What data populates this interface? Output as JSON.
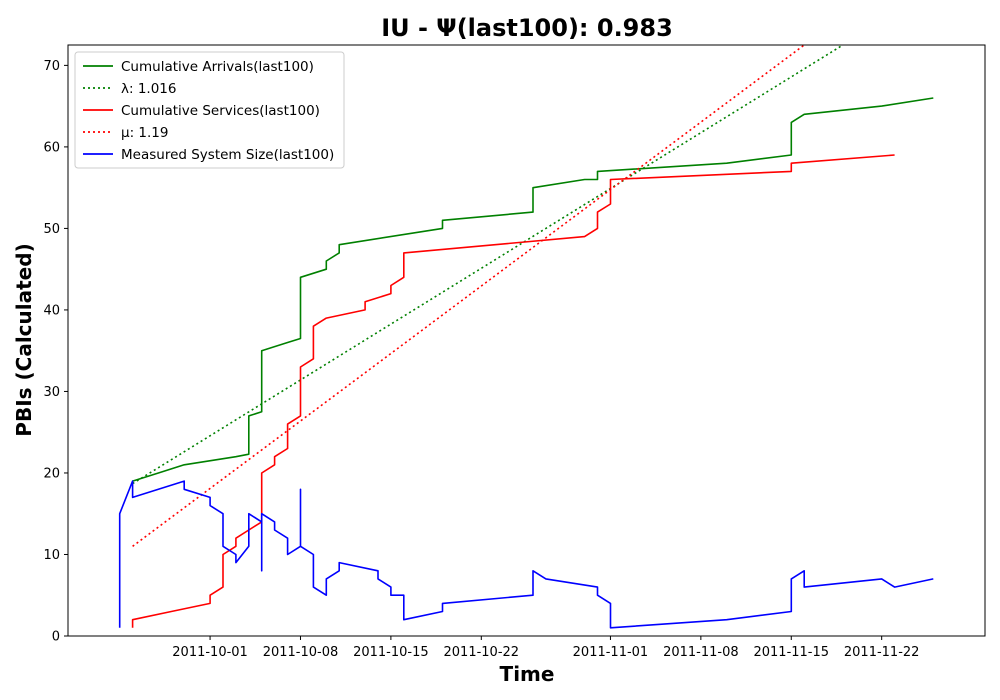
{
  "chart_data": {
    "type": "line",
    "title": "IU -  Ψ(last100): 0.983",
    "xlabel": "Time",
    "ylabel": "PBIs (Calculated)",
    "xlim": [
      "2011-09-20",
      "2011-11-30"
    ],
    "ylim": [
      0,
      72.5
    ],
    "x_ticks": [
      "2011-10-01",
      "2011-10-08",
      "2011-10-15",
      "2011-10-22",
      "2011-11-01",
      "2011-11-08",
      "2011-11-15",
      "2011-11-22"
    ],
    "y_ticks": [
      0,
      10,
      20,
      30,
      40,
      50,
      60,
      70
    ],
    "grid": false,
    "legend_position": "top-left",
    "series": [
      {
        "name": "Cumulative Arrivals(last100)",
        "color": "#008000",
        "style": "solid",
        "points": [
          [
            "2011-09-25",
            19
          ],
          [
            "2011-09-27",
            20
          ],
          [
            "2011-09-28",
            20.5
          ],
          [
            "2011-09-29",
            21
          ],
          [
            "2011-10-03",
            22
          ],
          [
            "2011-10-04",
            22.3
          ],
          [
            "2011-10-04",
            23
          ],
          [
            "2011-10-04",
            27
          ],
          [
            "2011-10-05",
            27.5
          ],
          [
            "2011-10-05",
            28
          ],
          [
            "2011-10-05",
            35
          ],
          [
            "2011-10-06",
            35.5
          ],
          [
            "2011-10-07",
            36
          ],
          [
            "2011-10-08",
            36.5
          ],
          [
            "2011-10-08",
            37
          ],
          [
            "2011-10-08",
            44
          ],
          [
            "2011-10-10",
            45
          ],
          [
            "2011-10-10",
            46
          ],
          [
            "2011-10-11",
            47
          ],
          [
            "2011-10-11",
            48
          ],
          [
            "2011-10-19",
            50
          ],
          [
            "2011-10-19",
            51
          ],
          [
            "2011-10-26",
            52
          ],
          [
            "2011-10-26",
            55
          ],
          [
            "2011-10-30",
            56
          ],
          [
            "2011-10-31",
            56
          ],
          [
            "2011-10-31",
            57
          ],
          [
            "2011-11-10",
            58
          ],
          [
            "2011-11-15",
            59
          ],
          [
            "2011-11-15",
            63
          ],
          [
            "2011-11-16",
            64
          ],
          [
            "2011-11-22",
            65
          ],
          [
            "2011-11-26",
            66
          ]
        ]
      },
      {
        "name": "λ: 1.016",
        "color": "#008000",
        "style": "dotted",
        "points": [
          [
            "2011-09-25",
            18.7
          ],
          [
            "2011-11-19",
            72.5
          ]
        ]
      },
      {
        "name": "Cumulative Services(last100)",
        "color": "#ff0000",
        "style": "solid",
        "points": [
          [
            "2011-09-25",
            1
          ],
          [
            "2011-09-25",
            2
          ],
          [
            "2011-09-28",
            3
          ],
          [
            "2011-10-01",
            4
          ],
          [
            "2011-10-01",
            5
          ],
          [
            "2011-10-02",
            6
          ],
          [
            "2011-10-02",
            10
          ],
          [
            "2011-10-03",
            11
          ],
          [
            "2011-10-03",
            12
          ],
          [
            "2011-10-04",
            13
          ],
          [
            "2011-10-05",
            14
          ],
          [
            "2011-10-05",
            15
          ],
          [
            "2011-10-05",
            16
          ],
          [
            "2011-10-05",
            20
          ],
          [
            "2011-10-06",
            21
          ],
          [
            "2011-10-06",
            22
          ],
          [
            "2011-10-07",
            23
          ],
          [
            "2011-10-07",
            26
          ],
          [
            "2011-10-08",
            27
          ],
          [
            "2011-10-08",
            33
          ],
          [
            "2011-10-09",
            34
          ],
          [
            "2011-10-09",
            35
          ],
          [
            "2011-10-09",
            38
          ],
          [
            "2011-10-10",
            39
          ],
          [
            "2011-10-13",
            40
          ],
          [
            "2011-10-13",
            41
          ],
          [
            "2011-10-15",
            42
          ],
          [
            "2011-10-15",
            43
          ],
          [
            "2011-10-16",
            44
          ],
          [
            "2011-10-16",
            47
          ],
          [
            "2011-10-30",
            49
          ],
          [
            "2011-10-31",
            50
          ],
          [
            "2011-10-31",
            52
          ],
          [
            "2011-11-01",
            53
          ],
          [
            "2011-11-01",
            55
          ],
          [
            "2011-11-01",
            56
          ],
          [
            "2011-11-15",
            57
          ],
          [
            "2011-11-15",
            58
          ],
          [
            "2011-11-23",
            59
          ]
        ]
      },
      {
        "name": "μ: 1.19",
        "color": "#ff0000",
        "style": "dotted",
        "points": [
          [
            "2011-09-25",
            11
          ],
          [
            "2011-11-16",
            72.5
          ]
        ]
      },
      {
        "name": "Measured System Size(last100)",
        "color": "#0000ff",
        "style": "solid",
        "points": [
          [
            "2011-09-24",
            1
          ],
          [
            "2011-09-24",
            15
          ],
          [
            "2011-09-25",
            19
          ],
          [
            "2011-09-25",
            18
          ],
          [
            "2011-09-25",
            17
          ],
          [
            "2011-09-29",
            19
          ],
          [
            "2011-09-29",
            18
          ],
          [
            "2011-10-01",
            17
          ],
          [
            "2011-10-01",
            16
          ],
          [
            "2011-10-02",
            15
          ],
          [
            "2011-10-02",
            11
          ],
          [
            "2011-10-03",
            10
          ],
          [
            "2011-10-03",
            9
          ],
          [
            "2011-10-04",
            11
          ],
          [
            "2011-10-04",
            15
          ],
          [
            "2011-10-05",
            14
          ],
          [
            "2011-10-05",
            12
          ],
          [
            "2011-10-05",
            13
          ],
          [
            "2011-10-05",
            8
          ],
          [
            "2011-10-05",
            15
          ],
          [
            "2011-10-06",
            14
          ],
          [
            "2011-10-06",
            13
          ],
          [
            "2011-10-07",
            12
          ],
          [
            "2011-10-07",
            10
          ],
          [
            "2011-10-08",
            11
          ],
          [
            "2011-10-08",
            18
          ],
          [
            "2011-10-08",
            11
          ],
          [
            "2011-10-09",
            10
          ],
          [
            "2011-10-09",
            9
          ],
          [
            "2011-10-09",
            6
          ],
          [
            "2011-10-10",
            5
          ],
          [
            "2011-10-10",
            7
          ],
          [
            "2011-10-11",
            8
          ],
          [
            "2011-10-11",
            9
          ],
          [
            "2011-10-14",
            8
          ],
          [
            "2011-10-14",
            7
          ],
          [
            "2011-10-15",
            6
          ],
          [
            "2011-10-15",
            5
          ],
          [
            "2011-10-16",
            5
          ],
          [
            "2011-10-16",
            2
          ],
          [
            "2011-10-19",
            3
          ],
          [
            "2011-10-19",
            4
          ],
          [
            "2011-10-26",
            5
          ],
          [
            "2011-10-26",
            8
          ],
          [
            "2011-10-27",
            7
          ],
          [
            "2011-10-31",
            6
          ],
          [
            "2011-10-31",
            5
          ],
          [
            "2011-11-01",
            4
          ],
          [
            "2011-11-01",
            1
          ],
          [
            "2011-11-10",
            2
          ],
          [
            "2011-11-15",
            3
          ],
          [
            "2011-11-15",
            7
          ],
          [
            "2011-11-16",
            8
          ],
          [
            "2011-11-16",
            6
          ],
          [
            "2011-11-22",
            7
          ],
          [
            "2011-11-23",
            6
          ],
          [
            "2011-11-26",
            7
          ]
        ]
      }
    ]
  }
}
